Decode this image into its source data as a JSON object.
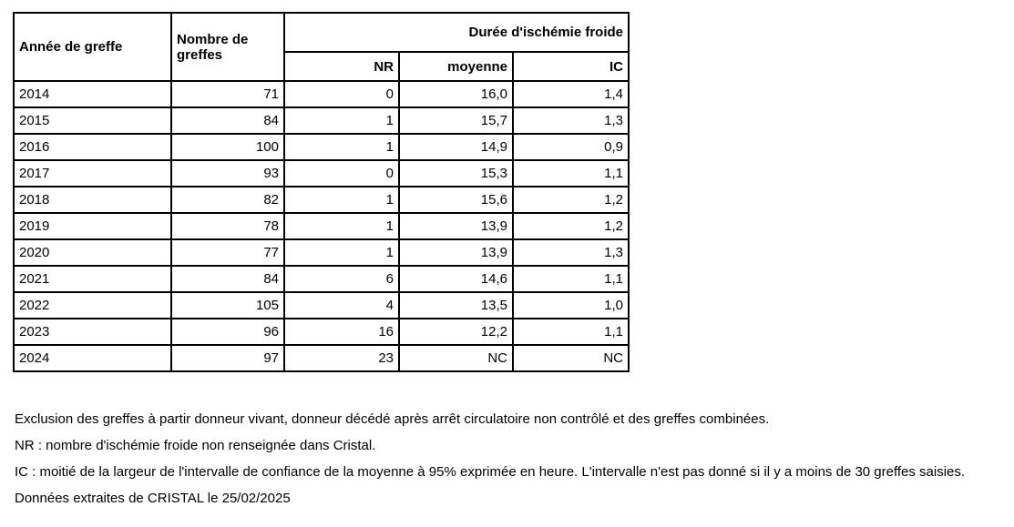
{
  "colors": {
    "background": "#ffffff",
    "text": "#000000",
    "table_border": "#000000"
  },
  "table": {
    "header": {
      "year": "Année de greffe",
      "count": "Nombre de greffes",
      "group": "Durée d'ischémie froide",
      "nr": "NR",
      "mean": "moyenne",
      "ic": "IC"
    },
    "rows": [
      {
        "year": "2014",
        "count": "71",
        "nr": "0",
        "mean": "16,0",
        "ic": "1,4"
      },
      {
        "year": "2015",
        "count": "84",
        "nr": "1",
        "mean": "15,7",
        "ic": "1,3"
      },
      {
        "year": "2016",
        "count": "100",
        "nr": "1",
        "mean": "14,9",
        "ic": "0,9"
      },
      {
        "year": "2017",
        "count": "93",
        "nr": "0",
        "mean": "15,3",
        "ic": "1,1"
      },
      {
        "year": "2018",
        "count": "82",
        "nr": "1",
        "mean": "15,6",
        "ic": "1,2"
      },
      {
        "year": "2019",
        "count": "78",
        "nr": "1",
        "mean": "13,9",
        "ic": "1,2"
      },
      {
        "year": "2020",
        "count": "77",
        "nr": "1",
        "mean": "13,9",
        "ic": "1,3"
      },
      {
        "year": "2021",
        "count": "84",
        "nr": "6",
        "mean": "14,6",
        "ic": "1,1"
      },
      {
        "year": "2022",
        "count": "105",
        "nr": "4",
        "mean": "13,5",
        "ic": "1,0"
      },
      {
        "year": "2023",
        "count": "96",
        "nr": "16",
        "mean": "12,2",
        "ic": "1,1"
      },
      {
        "year": "2024",
        "count": "97",
        "nr": "23",
        "mean": "NC",
        "ic": "NC"
      }
    ]
  },
  "footnotes": [
    "Exclusion des greffes à partir donneur vivant, donneur décédé après arrêt circulatoire non contrôlé et des greffes combinées.",
    "NR : nombre d'ischémie froide non renseignée dans Cristal.",
    "IC : moitié de la largeur de l'intervalle de confiance de la moyenne à 95% exprimée en heure. L'intervalle n'est pas donné si il y a moins de 30 greffes saisies.",
    "Données extraites de CRISTAL le 25/02/2025"
  ],
  "chart_data": {
    "type": "table",
    "title": "Durée d'ischémie froide",
    "columns": [
      "Année de greffe",
      "Nombre de greffes",
      "NR",
      "moyenne",
      "IC"
    ],
    "rows": [
      [
        "2014",
        71,
        0,
        "16,0",
        "1,4"
      ],
      [
        "2015",
        84,
        1,
        "15,7",
        "1,3"
      ],
      [
        "2016",
        100,
        1,
        "14,9",
        "0,9"
      ],
      [
        "2017",
        93,
        0,
        "15,3",
        "1,1"
      ],
      [
        "2018",
        82,
        1,
        "15,6",
        "1,2"
      ],
      [
        "2019",
        78,
        1,
        "13,9",
        "1,2"
      ],
      [
        "2020",
        77,
        1,
        "13,9",
        "1,3"
      ],
      [
        "2021",
        84,
        6,
        "14,6",
        "1,1"
      ],
      [
        "2022",
        105,
        4,
        "13,5",
        "1,0"
      ],
      [
        "2023",
        96,
        16,
        "12,2",
        "1,1"
      ],
      [
        "2024",
        97,
        23,
        "NC",
        "NC"
      ]
    ]
  }
}
